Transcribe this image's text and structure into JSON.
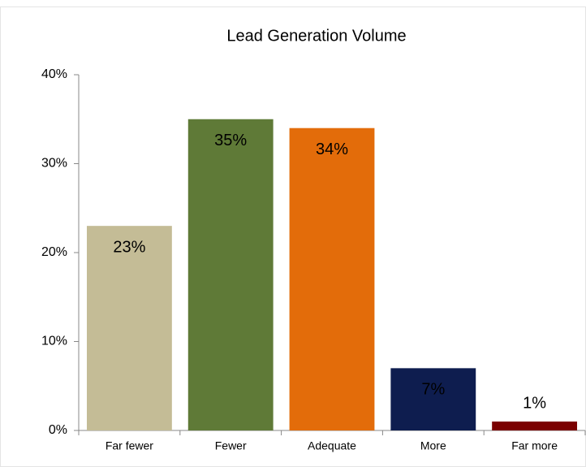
{
  "chart_data": {
    "type": "bar",
    "title": "Lead Generation Volume",
    "categories": [
      "Far fewer",
      "Fewer",
      "Adequate",
      "More",
      "Far more"
    ],
    "values": [
      23,
      35,
      34,
      7,
      1
    ],
    "value_labels": [
      "23%",
      "35%",
      "34%",
      "7%",
      "1%"
    ],
    "colors": [
      "#c4bc96",
      "#5f7a37",
      "#e36c0a",
      "#0e1d4f",
      "#7b0000"
    ],
    "ylim": [
      0,
      40
    ],
    "yticks": [
      {
        "value": 0,
        "label": "0%"
      },
      {
        "value": 10,
        "label": "10%"
      },
      {
        "value": 20,
        "label": "20%"
      },
      {
        "value": 30,
        "label": "30%"
      },
      {
        "value": 40,
        "label": "40%"
      }
    ]
  }
}
